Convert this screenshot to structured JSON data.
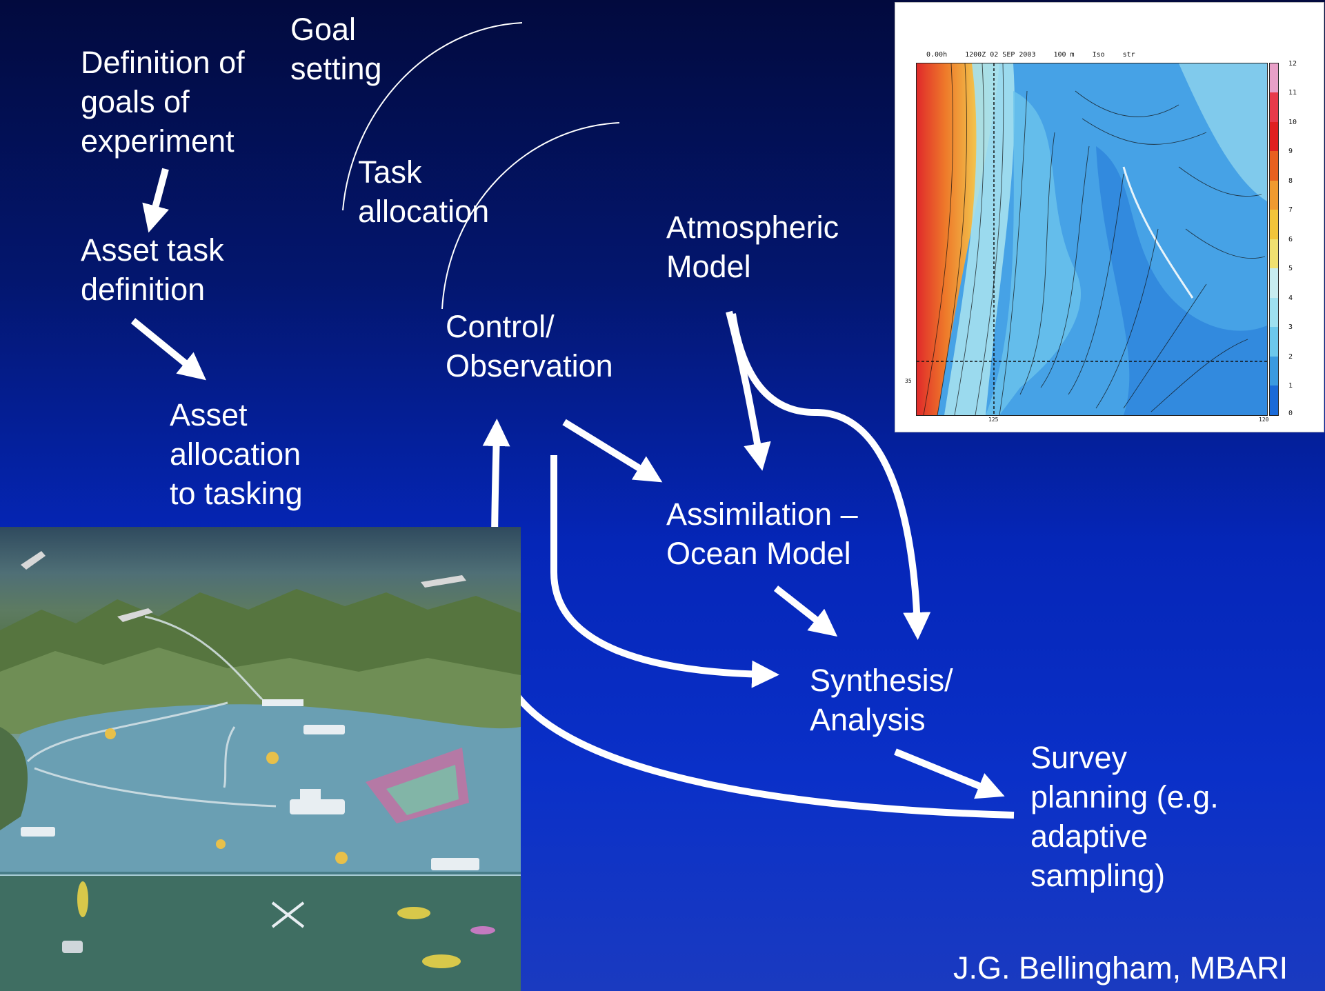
{
  "labels": {
    "goal_setting": "Goal\nsetting",
    "definition_of_goals": "Definition of\ngoals of\nexperiment",
    "asset_task_definition": "Asset task\ndefinition",
    "asset_allocation": "Asset\nallocation\nto tasking",
    "task_allocation": "Task\nallocation",
    "control_observation": "Control/\nObservation",
    "atmospheric_model": "Atmospheric\nModel",
    "assimilation_ocean_model": "Assimilation –\nOcean Model",
    "synthesis_analysis": "Synthesis/\nAnalysis",
    "survey_planning": "Survey\nplanning (e.g.\nadaptive\nsampling)"
  },
  "credit": "J.G. Bellingham, MBARI",
  "weather_map": {
    "header": [
      "0.00h",
      "1200Z 02 SEP 2003",
      "100 m",
      "Iso",
      "str"
    ],
    "colorbar_ticks": [
      "12",
      "11",
      "10",
      "9",
      "8",
      "7",
      "6",
      "5",
      "4",
      "3",
      "2",
      "1",
      "0"
    ],
    "lat_label": "35",
    "lon_labels": [
      "125",
      "120"
    ],
    "colorbar_colors": [
      "#e8a0c8",
      "#e83a4a",
      "#e02020",
      "#e86020",
      "#f09a30",
      "#f2c43a",
      "#f0e070",
      "#c8ecf0",
      "#9ee0f0",
      "#6cc8ec",
      "#3a9ae0",
      "#1a6ad8"
    ]
  },
  "colors": {
    "arrow": "#ffffff",
    "background_top": "#020a3e",
    "background_bottom": "#0a30c8"
  }
}
